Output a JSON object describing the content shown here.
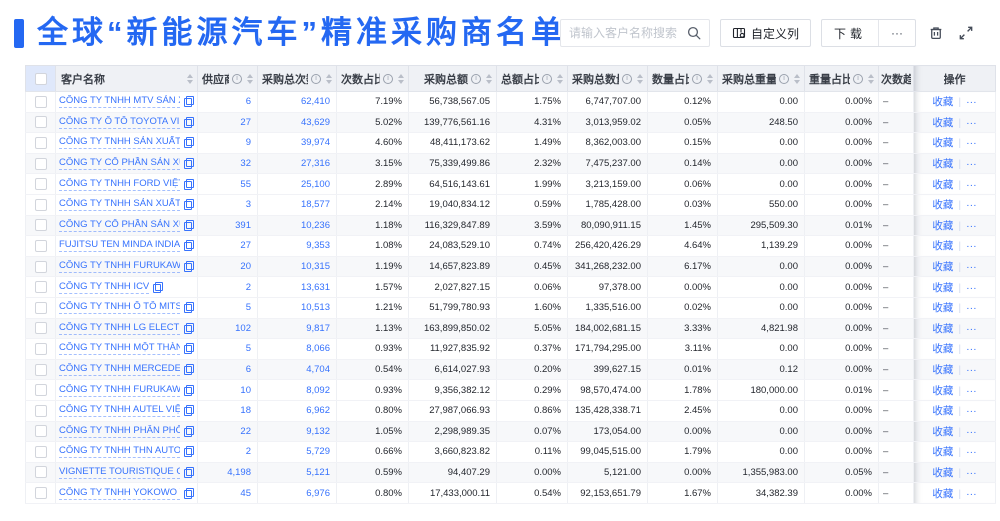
{
  "colors": {
    "accent": "#2468f2",
    "link": "#3672fd",
    "header_bg": "#eff1f5",
    "stripe_bg": "#f7f8fa"
  },
  "page": {
    "title": "全球“新能源汽车”精准采购商名单"
  },
  "toolbar": {
    "search_placeholder": "请输入客户名称搜索",
    "customize_columns_label": "自定义列",
    "download_label": "下载",
    "more_label": "···",
    "icons": {
      "search": "magnifier",
      "customize": "columns-grid-gear",
      "trash": "trash-can",
      "expand": "fullscreen-arrows"
    }
  },
  "table": {
    "action_labels": {
      "favorite": "收藏",
      "more": "···"
    },
    "icons": {
      "copy": "copy-squares",
      "info": "info-circle",
      "sort": "sort-carets"
    },
    "columns": [
      {
        "key": "name",
        "label": "客户名称",
        "info": false,
        "sortable": true
      },
      {
        "key": "supplier",
        "label": "供应商",
        "info": true,
        "sortable": true
      },
      {
        "key": "purchase_count",
        "label": "采购总次数",
        "info": true,
        "sortable": true
      },
      {
        "key": "count_pct",
        "label": "次数占比",
        "info": true,
        "sortable": true
      },
      {
        "key": "purchase_amount",
        "label": "采购总额",
        "info": true,
        "sortable": true
      },
      {
        "key": "amount_pct",
        "label": "总额占比",
        "info": true,
        "sortable": true
      },
      {
        "key": "purchase_qty",
        "label": "采购总数量",
        "info": true,
        "sortable": true
      },
      {
        "key": "qty_pct",
        "label": "数量占比",
        "info": true,
        "sortable": true
      },
      {
        "key": "purchase_weight",
        "label": "采购总重量",
        "info": true,
        "sortable": true
      },
      {
        "key": "weight_pct",
        "label": "重量占比",
        "info": true,
        "sortable": true
      },
      {
        "key": "trend",
        "label": "次数趋势",
        "info": false,
        "sortable": false
      },
      {
        "key": "actions",
        "label": "操作",
        "info": false,
        "sortable": false
      }
    ],
    "rows": [
      {
        "name": "CÔNG TY TNHH MTV SẢN XUẤ...",
        "supplier": "6",
        "purchase_count": "62,410",
        "count_pct": "7.19%",
        "purchase_amount": "56,738,567.05",
        "amount_pct": "1.75%",
        "purchase_qty": "6,747,707.00",
        "qty_pct": "0.12%",
        "purchase_weight": "0.00",
        "weight_pct": "0.00%",
        "trend": "–"
      },
      {
        "name": "CÔNG TY Ô TÔ TOYOTA VIỆT ...",
        "supplier": "27",
        "purchase_count": "43,629",
        "count_pct": "5.02%",
        "purchase_amount": "139,776,561.16",
        "amount_pct": "4.31%",
        "purchase_qty": "3,013,959.02",
        "qty_pct": "0.05%",
        "purchase_weight": "248.50",
        "weight_pct": "0.00%",
        "trend": "–"
      },
      {
        "name": "CÔNG TY TNHH SẢN XUẤT VÀ ...",
        "supplier": "9",
        "purchase_count": "39,974",
        "count_pct": "4.60%",
        "purchase_amount": "48,411,173.62",
        "amount_pct": "1.49%",
        "purchase_qty": "8,362,003.00",
        "qty_pct": "0.15%",
        "purchase_weight": "0.00",
        "weight_pct": "0.00%",
        "trend": "–"
      },
      {
        "name": "CÔNG TY CỔ PHẦN SẢN XUẤT...",
        "supplier": "32",
        "purchase_count": "27,316",
        "count_pct": "3.15%",
        "purchase_amount": "75,339,499.86",
        "amount_pct": "2.32%",
        "purchase_qty": "7,475,237.00",
        "qty_pct": "0.14%",
        "purchase_weight": "0.00",
        "weight_pct": "0.00%",
        "trend": "–"
      },
      {
        "name": "CÔNG TY TNHH FORD VIỆT NAM",
        "supplier": "55",
        "purchase_count": "25,100",
        "count_pct": "2.89%",
        "purchase_amount": "64,516,143.61",
        "amount_pct": "1.99%",
        "purchase_qty": "3,213,159.00",
        "qty_pct": "0.06%",
        "purchase_weight": "0.00",
        "weight_pct": "0.00%",
        "trend": "–"
      },
      {
        "name": "CÔNG TY TNHH SẢN XUẤT VÀ ...",
        "supplier": "3",
        "purchase_count": "18,577",
        "count_pct": "2.14%",
        "purchase_amount": "19,040,834.12",
        "amount_pct": "0.59%",
        "purchase_qty": "1,785,428.00",
        "qty_pct": "0.03%",
        "purchase_weight": "550.00",
        "weight_pct": "0.00%",
        "trend": "–"
      },
      {
        "name": "CÔNG TY CỔ PHẦN SẢN XUẤT...",
        "supplier": "391",
        "purchase_count": "10,236",
        "count_pct": "1.18%",
        "purchase_amount": "116,329,847.89",
        "amount_pct": "3.59%",
        "purchase_qty": "80,090,911.15",
        "qty_pct": "1.45%",
        "purchase_weight": "295,509.30",
        "weight_pct": "0.01%",
        "trend": "–"
      },
      {
        "name": "FUJITSU TEN MINDA INDIA PVT...",
        "supplier": "27",
        "purchase_count": "9,353",
        "count_pct": "1.08%",
        "purchase_amount": "24,083,529.10",
        "amount_pct": "0.74%",
        "purchase_qty": "256,420,426.29",
        "qty_pct": "4.64%",
        "purchase_weight": "1,139.29",
        "weight_pct": "0.00%",
        "trend": "–"
      },
      {
        "name": "CÔNG TY TNHH FURUKAWA A...",
        "supplier": "20",
        "purchase_count": "10,315",
        "count_pct": "1.19%",
        "purchase_amount": "14,657,823.89",
        "amount_pct": "0.45%",
        "purchase_qty": "341,268,232.00",
        "qty_pct": "6.17%",
        "purchase_weight": "0.00",
        "weight_pct": "0.00%",
        "trend": "–"
      },
      {
        "name": "CÔNG TY TNHH ICV",
        "supplier": "2",
        "purchase_count": "13,631",
        "count_pct": "1.57%",
        "purchase_amount": "2,027,827.15",
        "amount_pct": "0.06%",
        "purchase_qty": "97,378.00",
        "qty_pct": "0.00%",
        "purchase_weight": "0.00",
        "weight_pct": "0.00%",
        "trend": "–"
      },
      {
        "name": "CÔNG TY TNHH Ô TÔ MITSUBI...",
        "supplier": "5",
        "purchase_count": "10,513",
        "count_pct": "1.21%",
        "purchase_amount": "51,799,780.93",
        "amount_pct": "1.60%",
        "purchase_qty": "1,335,516.00",
        "qty_pct": "0.02%",
        "purchase_weight": "0.00",
        "weight_pct": "0.00%",
        "trend": "–"
      },
      {
        "name": "CÔNG TY TNHH LG ELECTRON...",
        "supplier": "102",
        "purchase_count": "9,817",
        "count_pct": "1.13%",
        "purchase_amount": "163,899,850.02",
        "amount_pct": "5.05%",
        "purchase_qty": "184,002,681.15",
        "qty_pct": "3.33%",
        "purchase_weight": "4,821.98",
        "weight_pct": "0.00%",
        "trend": "–"
      },
      {
        "name": "CÔNG TY TNHH MỘT THÀNH V...",
        "supplier": "5",
        "purchase_count": "8,066",
        "count_pct": "0.93%",
        "purchase_amount": "11,927,835.92",
        "amount_pct": "0.37%",
        "purchase_qty": "171,794,295.00",
        "qty_pct": "3.11%",
        "purchase_weight": "0.00",
        "weight_pct": "0.00%",
        "trend": "–"
      },
      {
        "name": "CÔNG TY TNHH MERCEDES–B...",
        "supplier": "6",
        "purchase_count": "4,704",
        "count_pct": "0.54%",
        "purchase_amount": "6,614,027.93",
        "amount_pct": "0.20%",
        "purchase_qty": "399,627.15",
        "qty_pct": "0.01%",
        "purchase_weight": "0.12",
        "weight_pct": "0.00%",
        "trend": "–"
      },
      {
        "name": "CÔNG TY TNHH FURUKAWA A...",
        "supplier": "10",
        "purchase_count": "8,092",
        "count_pct": "0.93%",
        "purchase_amount": "9,356,382.12",
        "amount_pct": "0.29%",
        "purchase_qty": "98,570,474.00",
        "qty_pct": "1.78%",
        "purchase_weight": "180,000.00",
        "weight_pct": "0.01%",
        "trend": "–"
      },
      {
        "name": "CÔNG TY TNHH AUTEL VIỆT N...",
        "supplier": "18",
        "purchase_count": "6,962",
        "count_pct": "0.80%",
        "purchase_amount": "27,987,066.93",
        "amount_pct": "0.86%",
        "purchase_qty": "135,428,338.71",
        "qty_pct": "2.45%",
        "purchase_weight": "0.00",
        "weight_pct": "0.00%",
        "trend": "–"
      },
      {
        "name": "CÔNG TY TNHH PHÂN PHỐI T...",
        "supplier": "22",
        "purchase_count": "9,132",
        "count_pct": "1.05%",
        "purchase_amount": "2,298,989.35",
        "amount_pct": "0.07%",
        "purchase_qty": "173,054.00",
        "qty_pct": "0.00%",
        "purchase_weight": "0.00",
        "weight_pct": "0.00%",
        "trend": "–"
      },
      {
        "name": "CÔNG TY TNHH THN AUTOPAR...",
        "supplier": "2",
        "purchase_count": "5,729",
        "count_pct": "0.66%",
        "purchase_amount": "3,660,823.82",
        "amount_pct": "0.11%",
        "purchase_qty": "99,045,515.00",
        "qty_pct": "1.79%",
        "purchase_weight": "0.00",
        "weight_pct": "0.00%",
        "trend": "–"
      },
      {
        "name": "VIGNETTE TOURISTIQUE G UNI...",
        "supplier": "4,198",
        "purchase_count": "5,121",
        "count_pct": "0.59%",
        "purchase_amount": "94,407.29",
        "amount_pct": "0.00%",
        "purchase_qty": "5,121.00",
        "qty_pct": "0.00%",
        "purchase_weight": "1,355,983.00",
        "weight_pct": "0.05%",
        "trend": "–"
      },
      {
        "name": "CÔNG TY TNHH YOKOWO VIỆT...",
        "supplier": "45",
        "purchase_count": "6,976",
        "count_pct": "0.80%",
        "purchase_amount": "17,433,000.11",
        "amount_pct": "0.54%",
        "purchase_qty": "92,153,651.79",
        "qty_pct": "1.67%",
        "purchase_weight": "34,382.39",
        "weight_pct": "0.00%",
        "trend": "–"
      }
    ]
  }
}
